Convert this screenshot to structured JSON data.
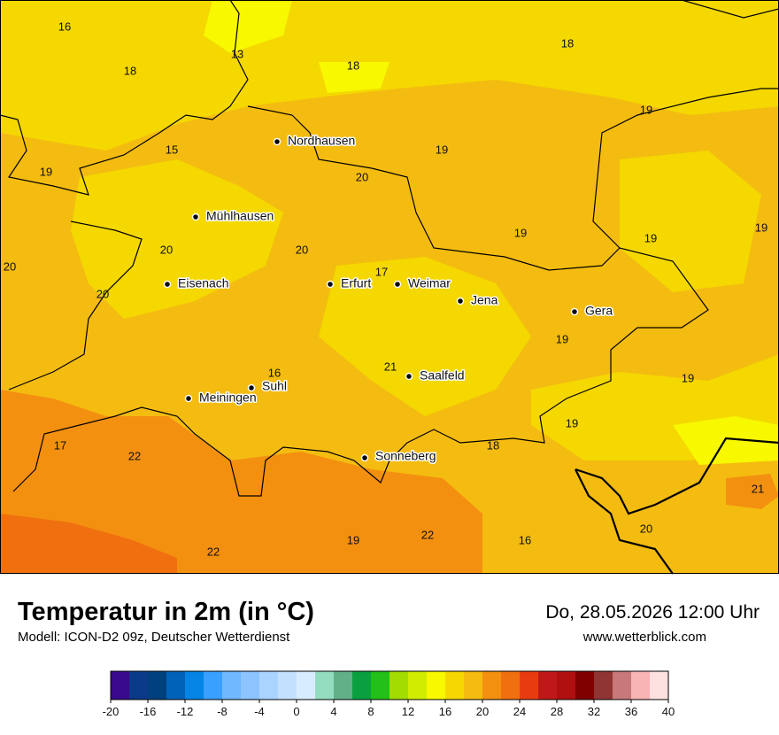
{
  "map": {
    "cities": [
      "Nordhausen",
      "Mühlhausen",
      "Eisenach",
      "Erfurt",
      "Weimar",
      "Jena",
      "Gera",
      "Saalfeld",
      "Suhl",
      "Meiningen",
      "Sonneberg"
    ],
    "temperature_labels": [
      16,
      13,
      18,
      18,
      18,
      19,
      15,
      19,
      19,
      20,
      19,
      19,
      19,
      20,
      20,
      20,
      17,
      20,
      19,
      21,
      16,
      19,
      19,
      18,
      17,
      22,
      21,
      20,
      22,
      19,
      16,
      22
    ]
  },
  "footer": {
    "title": "Temperatur in 2m (in °C)",
    "subtitle": "Modell: ICON-D2 09z, Deutscher Wetterdienst",
    "date": "Do, 28.05.2026 12:00 Uhr",
    "website": "www.wetterblick.com"
  },
  "legend": {
    "colors": [
      "#3a0a8c",
      "#0a3a88",
      "#00407e",
      "#0062b8",
      "#0484e4",
      "#3aa0ff",
      "#70b8ff",
      "#8cc4ff",
      "#aad4ff",
      "#c4e0ff",
      "#d8ecff",
      "#94dcc0",
      "#62b088",
      "#0aa040",
      "#22c018",
      "#a2dc00",
      "#d2ec00",
      "#f8f800",
      "#f4d800",
      "#f4bc10",
      "#f49010",
      "#f07010",
      "#e83c10",
      "#c01818",
      "#b01010",
      "#800000",
      "#903434",
      "#c87878",
      "#f8b4b4",
      "#fde0e0"
    ],
    "range": [
      -20,
      40
    ],
    "ticks": [
      -20,
      -16,
      -12,
      -8,
      -4,
      0,
      4,
      8,
      12,
      16,
      20,
      24,
      28,
      32,
      36,
      40
    ]
  }
}
